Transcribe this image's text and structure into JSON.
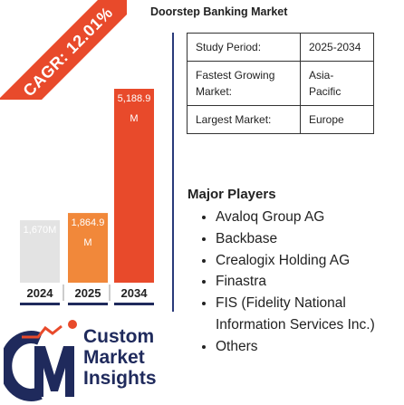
{
  "header": {
    "title": "Doorstep Banking Market"
  },
  "ribbon": {
    "label": "CAGR: 12.01%"
  },
  "chart_data": {
    "type": "bar",
    "categories": [
      "2024",
      "2025",
      "2034"
    ],
    "values": [
      1670,
      1864.9,
      5188.9
    ],
    "data_labels": [
      "1,670M",
      "1,864.9 M",
      "5,188.9 M"
    ],
    "colors": [
      "#e3e3e3",
      "#f1883a",
      "#e84a2b"
    ],
    "title": "",
    "xlabel": "",
    "ylabel": "",
    "ylim": [
      0,
      5600
    ]
  },
  "info_table": [
    {
      "key": "Study Period:",
      "value": "2025-2034"
    },
    {
      "key": "Fastest Growing Market:",
      "value": "Asia-Pacific"
    },
    {
      "key": "Largest Market:",
      "value": "Europe"
    }
  ],
  "major_players": {
    "title": "Major Players",
    "items": [
      "Avaloq Group AG",
      "Backbase",
      "Crealogix Holding AG",
      "Finastra",
      "FIS (Fidelity National Information Services Inc.)",
      "Others"
    ]
  },
  "logo": {
    "line1": "Custom",
    "line2": "Market",
    "line3": "Insights",
    "mark": "CMI logo"
  }
}
